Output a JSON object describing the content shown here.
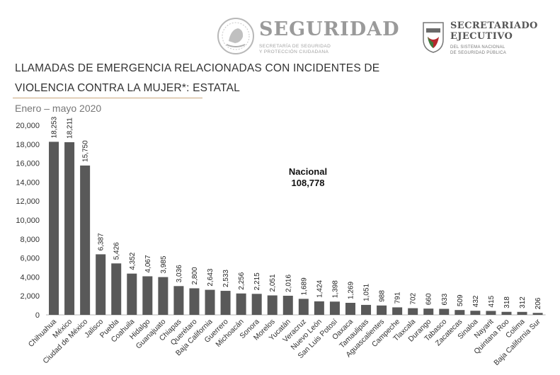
{
  "header": {
    "seguridad_title": "SEGURIDAD",
    "seguridad_subtitle_line1": "SECRETARÍA DE SEGURIDAD",
    "seguridad_subtitle_line2": "Y PROTECCIÓN CIUDADANA",
    "sesnsp_title_line1": "SECRETARIADO",
    "sesnsp_title_line2": "EJECUTIVO",
    "sesnsp_subtitle_line1": "DEL SISTEMA NACIONAL",
    "sesnsp_subtitle_line2": "DE SEGURIDAD PÚBLICA"
  },
  "colors": {
    "bar": "#595959",
    "axis": "#b5b5b5",
    "title_underline": "#c9a57b"
  },
  "chart_data": {
    "type": "bar",
    "title_line1": "LLAMADAS DE EMERGENCIA RELACIONADAS CON INCIDENTES DE",
    "title_line2": "VIOLENCIA CONTRA LA MUJER*: ESTATAL",
    "subtitle": "Enero – mayo 2020",
    "annotation_label": "Nacional",
    "annotation_value": "108,778",
    "ylim": [
      0,
      20000
    ],
    "yticks": [
      "0",
      "2,000",
      "4,000",
      "6,000",
      "8,000",
      "10,000",
      "12,000",
      "14,000",
      "16,000",
      "18,000",
      "20,000"
    ],
    "categories": [
      "Chihuahua",
      "México",
      "Ciudad de México",
      "Jalisco",
      "Puebla",
      "Coahuila",
      "Hidalgo",
      "Guanajuato",
      "Chiapas",
      "Querétaro",
      "Baja California",
      "Guerrero",
      "Michoacán",
      "Sonora",
      "Morelos",
      "Yucatán",
      "Veracruz",
      "Nuevo León",
      "San Luis Potosí",
      "Oaxaca",
      "Tamaulipas",
      "Aguascalientes",
      "Campeche",
      "Tlaxcala",
      "Durango",
      "Tabasco",
      "Zacatecas",
      "Sinaloa",
      "Nayarit",
      "Quintana Roo",
      "Colima",
      "Baja California Sur"
    ],
    "values": [
      18253,
      18211,
      15750,
      6387,
      5426,
      4352,
      4067,
      3985,
      3036,
      2800,
      2643,
      2533,
      2256,
      2215,
      2051,
      2016,
      1689,
      1424,
      1398,
      1269,
      1051,
      988,
      791,
      702,
      660,
      633,
      509,
      432,
      415,
      318,
      312,
      206
    ],
    "value_labels": [
      "18,253",
      "18,211",
      "15,750",
      "6,387",
      "5,426",
      "4,352",
      "4,067",
      "3,985",
      "3,036",
      "2,800",
      "2,643",
      "2,533",
      "2,256",
      "2,215",
      "2,051",
      "2,016",
      "1,689",
      "1,424",
      "1,398",
      "1,269",
      "1,051",
      "988",
      "791",
      "702",
      "660",
      "633",
      "509",
      "432",
      "415",
      "318",
      "312",
      "206"
    ],
    "grid": false,
    "legend": "none"
  }
}
